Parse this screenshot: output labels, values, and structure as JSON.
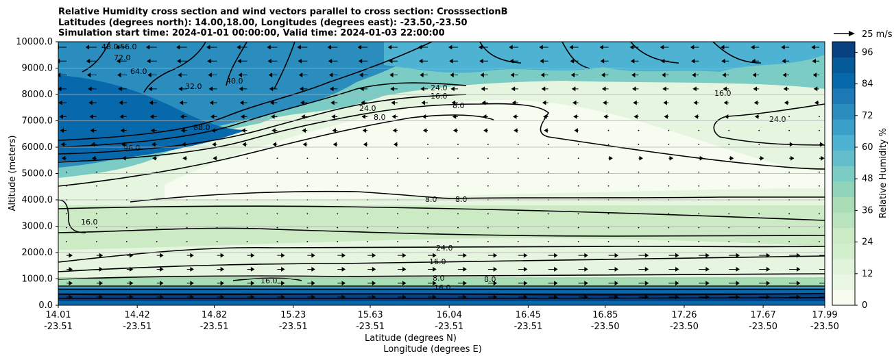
{
  "title_lines": [
    "Relative Humidity cross section and wind vectors parallel to cross section: CrosssectionB",
    "Latitudes (degrees north): 14.00,18.00, Longitudes (degrees east): -23.50,-23.50",
    "Simulation start time: 2024-01-01 00:00:00, Valid time: 2024-01-03 22:00:00"
  ],
  "quiver_key_label": "25 m/s",
  "chart_data": {
    "type": "heatmap",
    "title": "Relative Humidity cross section and wind vectors parallel to cross section: CrosssectionB",
    "xlabel_lines": [
      "Latitude (degrees N)",
      "Longitude (degrees E)"
    ],
    "ylabel": "Altitude (meters)",
    "ylim": [
      0,
      10000
    ],
    "y_ticks": [
      0,
      1000,
      2000,
      3000,
      4000,
      5000,
      6000,
      7000,
      8000,
      9000,
      10000
    ],
    "y_tick_labels": [
      "0.0",
      "1000.0",
      "2000.0",
      "3000.0",
      "4000.0",
      "5000.0",
      "6000.0",
      "7000.0",
      "8000.0",
      "9000.0",
      "10000.0"
    ],
    "xlim": [
      14.01,
      17.99
    ],
    "x_ticks": [
      {
        "lat": "14.01",
        "lon": "-23.51"
      },
      {
        "lat": "14.42",
        "lon": "-23.51"
      },
      {
        "lat": "14.82",
        "lon": "-23.51"
      },
      {
        "lat": "15.23",
        "lon": "-23.51"
      },
      {
        "lat": "15.63",
        "lon": "-23.51"
      },
      {
        "lat": "16.04",
        "lon": "-23.51"
      },
      {
        "lat": "16.45",
        "lon": "-23.51"
      },
      {
        "lat": "16.85",
        "lon": "-23.50"
      },
      {
        "lat": "17.26",
        "lon": "-23.50"
      },
      {
        "lat": "17.67",
        "lon": "-23.50"
      },
      {
        "lat": "17.99",
        "lon": "-23.50"
      }
    ],
    "grid": "horizontal",
    "colorbar": {
      "label": "Relative Humidity %",
      "ticks": [
        0,
        12,
        24,
        36,
        48,
        60,
        72,
        84,
        96
      ],
      "range": [
        0,
        100
      ],
      "colors": [
        "#f7fcf0",
        "#eaf7e4",
        "#e0f3db",
        "#d3eecd",
        "#ccebc5",
        "#b9e3be",
        "#a8ddb5",
        "#90d4b9",
        "#7bccc4",
        "#64bdcb",
        "#4eb3d3",
        "#3aa0c9",
        "#2b8cbe",
        "#1d79b5",
        "#0868ac",
        "#075a9a",
        "#084081"
      ]
    },
    "contour_labels": [
      "48.0",
      "56.0",
      "72.0",
      "64.0",
      "32.0",
      "40.0",
      "24.0",
      "16.0",
      "8.0",
      "96.0",
      "88.0",
      "24.0",
      "16.0",
      "8.0",
      "16.0",
      "24.0",
      "8.0",
      "8.0",
      "24.0",
      "16.0",
      "8.0",
      "16.0",
      "16.0",
      "8.0"
    ],
    "quiver_key": "25 m/s"
  }
}
